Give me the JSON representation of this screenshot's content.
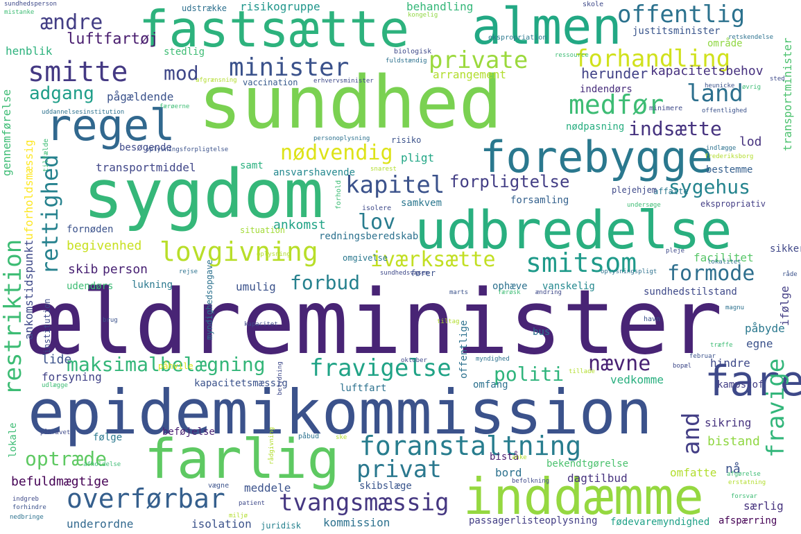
{
  "palette": [
    "#440154",
    "#482878",
    "#3e4989",
    "#31688e",
    "#26828e",
    "#1f9e89",
    "#35b779",
    "#6ece58",
    "#b5de2b",
    "#fde725"
  ],
  "words": [
    {
      "text": "ældreminister",
      "color": "#482475",
      "vertical": false
    },
    {
      "text": "epidemikommission",
      "color": "#3b528b",
      "vertical": false
    },
    {
      "text": "sundhed",
      "color": "#7ad151",
      "vertical": false
    },
    {
      "text": "sygdom",
      "color": "#35b779",
      "vertical": false
    },
    {
      "text": "udbredelse",
      "color": "#29af7f",
      "vertical": false
    },
    {
      "text": "fastsætte",
      "color": "#2db27d",
      "vertical": false
    },
    {
      "text": "almen",
      "color": "#22a884",
      "vertical": false
    },
    {
      "text": "farlig",
      "color": "#5ec962",
      "vertical": false
    },
    {
      "text": "inddæmme",
      "color": "#95d840",
      "vertical": false
    },
    {
      "text": "forebygge",
      "color": "#2a788e",
      "vertical": false
    },
    {
      "text": "regel",
      "color": "#31688e",
      "vertical": false
    },
    {
      "text": "fare",
      "color": "#3e4989",
      "vertical": false
    },
    {
      "text": "foranstaltning",
      "color": "#287d8e",
      "vertical": false
    },
    {
      "text": "smitte",
      "color": "#443983",
      "vertical": false
    },
    {
      "text": "minister",
      "color": "#3b528b",
      "vertical": false
    },
    {
      "text": "lovgivning",
      "color": "#b8de29",
      "vertical": false
    },
    {
      "text": "smitsom",
      "color": "#1f9a8a",
      "vertical": false
    },
    {
      "text": "overførbar",
      "color": "#355f8d",
      "vertical": false
    },
    {
      "text": "tvangsmæssig",
      "color": "#453781",
      "vertical": false
    },
    {
      "text": "forhandling",
      "color": "#d0e11c",
      "vertical": false
    },
    {
      "text": "nødvendig",
      "color": "#dde318",
      "vertical": false
    },
    {
      "text": "offentlig",
      "color": "#2c728e",
      "vertical": false
    },
    {
      "text": "medfør",
      "color": "#3dbc74",
      "vertical": false
    },
    {
      "text": "restriktion",
      "color": "#3dbc74",
      "vertical": true
    },
    {
      "text": "rettighed",
      "color": "#26828e",
      "vertical": true
    },
    {
      "text": "kapitel",
      "color": "#3b528b",
      "vertical": false
    },
    {
      "text": "iværksætte",
      "color": "#c2df23",
      "vertical": false
    },
    {
      "text": "fravigelse",
      "color": "#20a386",
      "vertical": false
    },
    {
      "text": "optræde",
      "color": "#5ec962",
      "vertical": false
    },
    {
      "text": "privat",
      "color": "#2a788e",
      "vertical": false
    },
    {
      "text": "ændre",
      "color": "#433e85",
      "vertical": false
    },
    {
      "text": "luftfartøj",
      "color": "#481c6e",
      "vertical": false
    },
    {
      "text": "adgang",
      "color": "#1f9e89",
      "vertical": false
    },
    {
      "text": "mod",
      "color": "#3f4788",
      "vertical": false
    },
    {
      "text": "private",
      "color": "#9bd93c",
      "vertical": false
    },
    {
      "text": "land",
      "color": "#2d708e",
      "vertical": false
    },
    {
      "text": "indsætte",
      "color": "#46337f",
      "vertical": false
    },
    {
      "text": "forpligtelse",
      "color": "#433e85",
      "vertical": false
    },
    {
      "text": "sygehus",
      "color": "#25848e",
      "vertical": false
    },
    {
      "text": "lov",
      "color": "#287c8e",
      "vertical": false
    },
    {
      "text": "forbud",
      "color": "#26818e",
      "vertical": false
    },
    {
      "text": "formode",
      "color": "#2e6f8e",
      "vertical": false
    },
    {
      "text": "nævne",
      "color": "#482173",
      "vertical": false
    },
    {
      "text": "politi",
      "color": "#2fb47c",
      "vertical": false
    },
    {
      "text": "maksimalbelægning",
      "color": "#34b679",
      "vertical": false
    },
    {
      "text": "fravige",
      "color": "#32b67a",
      "vertical": true
    },
    {
      "text": "and",
      "color": "#433e85",
      "vertical": true
    },
    {
      "text": "herunder",
      "color": "#414287",
      "vertical": false
    },
    {
      "text": "pågældende",
      "color": "#3b528b",
      "vertical": false
    },
    {
      "text": "kapacitetsbehov",
      "color": "#46307e",
      "vertical": false
    },
    {
      "text": "justitsminister",
      "color": "#39558c",
      "vertical": false
    },
    {
      "text": "område",
      "color": "#90d743",
      "vertical": false
    },
    {
      "text": "arrangement",
      "color": "#b2dd2d",
      "vertical": false
    },
    {
      "text": "vaccination",
      "color": "#375a8c",
      "vertical": false
    },
    {
      "text": "indendørs",
      "color": "#472d7b",
      "vertical": false
    },
    {
      "text": "udstrække",
      "color": "#2d708e",
      "vertical": false
    },
    {
      "text": "risikogruppe",
      "color": "#1f968b",
      "vertical": false
    },
    {
      "text": "behandling",
      "color": "#35b779",
      "vertical": false
    },
    {
      "text": "henblik",
      "color": "#2db27d",
      "vertical": false
    },
    {
      "text": "stedlig",
      "color": "#3dbc74",
      "vertical": false
    },
    {
      "text": "transportmiddel",
      "color": "#404688",
      "vertical": false
    },
    {
      "text": "besøgende",
      "color": "#3e4989",
      "vertical": false
    },
    {
      "text": "nødpasning",
      "color": "#28ae80",
      "vertical": false
    },
    {
      "text": "risiko",
      "color": "#3b528b",
      "vertical": false
    },
    {
      "text": "pligt",
      "color": "#21a685",
      "vertical": false
    },
    {
      "text": "samt",
      "color": "#2ab07f",
      "vertical": false
    },
    {
      "text": "ansvarshavende",
      "color": "#23888e",
      "vertical": false
    },
    {
      "text": "lod",
      "color": "#46327e",
      "vertical": false
    },
    {
      "text": "bestemme",
      "color": "#355f8d",
      "vertical": false
    },
    {
      "text": "samkvem",
      "color": "#2a768e",
      "vertical": false
    },
    {
      "text": "forsamling",
      "color": "#34618d",
      "vertical": false
    },
    {
      "text": "affatte",
      "color": "#2a788e",
      "vertical": false
    },
    {
      "text": "ekspropriativ",
      "color": "#433e85",
      "vertical": false
    },
    {
      "text": "plejehjem",
      "color": "#3e4989",
      "vertical": false
    },
    {
      "text": "ankomst",
      "color": "#20a386",
      "vertical": false
    },
    {
      "text": "situation",
      "color": "#a2da37",
      "vertical": false
    },
    {
      "text": "redningsberedskab",
      "color": "#2c718e",
      "vertical": false
    },
    {
      "text": "begivenhed",
      "color": "#c8e020",
      "vertical": false
    },
    {
      "text": "skib",
      "color": "#482173",
      "vertical": false
    },
    {
      "text": "person",
      "color": "#482173",
      "vertical": false
    },
    {
      "text": "omgivelse",
      "color": "#2a788e",
      "vertical": false
    },
    {
      "text": "fører",
      "color": "#3b528b",
      "vertical": false
    },
    {
      "text": "facilitet",
      "color": "#56c667",
      "vertical": false
    },
    {
      "text": "sikker",
      "color": "#3f4788",
      "vertical": false
    },
    {
      "text": "ophæve",
      "color": "#2c718e",
      "vertical": false
    },
    {
      "text": "vanskelig",
      "color": "#23888e",
      "vertical": false
    },
    {
      "text": "umulig",
      "color": "#3b528b",
      "vertical": false
    },
    {
      "text": "lukning",
      "color": "#2a788e",
      "vertical": false
    },
    {
      "text": "udendørs",
      "color": "#3dbc74",
      "vertical": false
    },
    {
      "text": "sundhedstilstand",
      "color": "#3e4989",
      "vertical": false
    },
    {
      "text": "ifølge",
      "color": "#433e85",
      "vertical": true
    },
    {
      "text": "påbyde",
      "color": "#2a788e",
      "vertical": false
    },
    {
      "text": "egne",
      "color": "#3b528b",
      "vertical": false
    },
    {
      "text": "bus",
      "color": "#2c718e",
      "vertical": false
    },
    {
      "text": "lide",
      "color": "#3b528b",
      "vertical": false
    },
    {
      "text": "hindre",
      "color": "#3e4989",
      "vertical": false
    },
    {
      "text": "forsyning",
      "color": "#414287",
      "vertical": false
    },
    {
      "text": "kapacitetsmæssig",
      "color": "#3b528b",
      "vertical": false
    },
    {
      "text": "omfang",
      "color": "#2c718e",
      "vertical": false
    },
    {
      "text": "luftfart",
      "color": "#2c718e",
      "vertical": false
    },
    {
      "text": "vedkomme",
      "color": "#29af7f",
      "vertical": false
    },
    {
      "text": "kampstof",
      "color": "#433e85",
      "vertical": false
    },
    {
      "text": "sikring",
      "color": "#46327e",
      "vertical": false
    },
    {
      "text": "følge",
      "color": "#2a788e",
      "vertical": false
    },
    {
      "text": "beføjelse",
      "color": "#482173",
      "vertical": false
    },
    {
      "text": "bistand",
      "color": "#90d743",
      "vertical": false
    },
    {
      "text": "bistå",
      "color": "#481c6e",
      "vertical": false
    },
    {
      "text": "bekendtgørelse",
      "color": "#4ac16d",
      "vertical": false
    },
    {
      "text": "omfatte",
      "color": "#b2dd2d",
      "vertical": false
    },
    {
      "text": "nå",
      "color": "#3b528b",
      "vertical": false
    },
    {
      "text": "bord",
      "color": "#2c718e",
      "vertical": false
    },
    {
      "text": "befuldmægtige",
      "color": "#440154",
      "vertical": false
    },
    {
      "text": "meddele",
      "color": "#3b528b",
      "vertical": false
    },
    {
      "text": "skibslæge",
      "color": "#39558c",
      "vertical": false
    },
    {
      "text": "dagtilbud",
      "color": "#46327e",
      "vertical": false
    },
    {
      "text": "underordne",
      "color": "#31688e",
      "vertical": false
    },
    {
      "text": "isolation",
      "color": "#3b528b",
      "vertical": false
    },
    {
      "text": "juridisk",
      "color": "#26818e",
      "vertical": false
    },
    {
      "text": "kommission",
      "color": "#2c718e",
      "vertical": false
    },
    {
      "text": "passagerlisteoplysning",
      "color": "#433e85",
      "vertical": false
    },
    {
      "text": "fødevaremyndighed",
      "color": "#1fa187",
      "vertical": false
    },
    {
      "text": "afspærring",
      "color": "#440154",
      "vertical": false
    },
    {
      "text": "særlig",
      "color": "#46327e",
      "vertical": false
    },
    {
      "text": "gennemførelse",
      "color": "#3dbc74",
      "vertical": true
    },
    {
      "text": "uforholdsmæssig",
      "color": "#fde725",
      "vertical": true
    },
    {
      "text": "ankomstidspunkt",
      "color": "#3e4989",
      "vertical": true
    },
    {
      "text": "transportminister",
      "color": "#4ac16d",
      "vertical": true
    },
    {
      "text": "myndighedsopgave",
      "color": "#2c718e",
      "vertical": true
    },
    {
      "text": "offentlige",
      "color": "#2c718e",
      "vertical": true
    },
    {
      "text": "institution",
      "color": "#3e4989",
      "vertical": true
    },
    {
      "text": "fornøden",
      "color": "#3b528b",
      "vertical": false
    },
    {
      "text": "lokale",
      "color": "#3dbc74",
      "vertical": true
    },
    {
      "text": "sundhedsperson",
      "color": "#3e4989",
      "vertical": false
    },
    {
      "text": "mistanke",
      "color": "#3dbc74",
      "vertical": false
    },
    {
      "text": "ekspropriation",
      "color": "#2a788e",
      "vertical": false
    },
    {
      "text": "biologisk",
      "color": "#3e4989",
      "vertical": false
    },
    {
      "text": "kongelig",
      "color": "#90d743",
      "vertical": false
    },
    {
      "text": "skole",
      "color": "#3e4989",
      "vertical": false
    },
    {
      "text": "retskendelse",
      "color": "#2c718e",
      "vertical": false
    },
    {
      "text": "ressource",
      "color": "#3dbc74",
      "vertical": false
    },
    {
      "text": "fuldstændig",
      "color": "#2c718e",
      "vertical": false
    },
    {
      "text": "afgrænsning",
      "color": "#b2dd2d",
      "vertical": false
    },
    {
      "text": "erhvervsminister",
      "color": "#3e4989",
      "vertical": false
    },
    {
      "text": "heunicke",
      "color": "#3b528b",
      "vertical": false
    },
    {
      "text": "øvrig",
      "color": "#3dbc74",
      "vertical": false
    },
    {
      "text": "sted",
      "color": "#3e4989",
      "vertical": false
    },
    {
      "text": "uddannelsesinstitution",
      "color": "#2c718e",
      "vertical": false
    },
    {
      "text": "færøerne",
      "color": "#3dbc74",
      "vertical": false
    },
    {
      "text": "offentlighed",
      "color": "#3b528b",
      "vertical": false
    },
    {
      "text": "minimere",
      "color": "#3e4989",
      "vertical": false
    },
    {
      "text": "frederiksborg",
      "color": "#b2dd2d",
      "vertical": false
    },
    {
      "text": "indlægge",
      "color": "#2c718e",
      "vertical": false
    },
    {
      "text": "oplysningsforpligtelse",
      "color": "#3b528b",
      "vertical": false
    },
    {
      "text": "personoplysning",
      "color": "#2c718e",
      "vertical": false
    },
    {
      "text": "snarest",
      "color": "#b2dd2d",
      "vertical": false
    },
    {
      "text": "isolere",
      "color": "#3e4989",
      "vertical": false
    },
    {
      "text": "undersøge",
      "color": "#3dbc74",
      "vertical": false
    },
    {
      "text": "oplysning",
      "color": "#b2dd2d",
      "vertical": false
    },
    {
      "text": "pleje",
      "color": "#3e4989",
      "vertical": false
    },
    {
      "text": "lokalitet",
      "color": "#2c718e",
      "vertical": false
    },
    {
      "text": "råde",
      "color": "#3b528b",
      "vertical": false
    },
    {
      "text": "rejse",
      "color": "#2c718e",
      "vertical": false
    },
    {
      "text": "sundhedsvæsen",
      "color": "#3e4989",
      "vertical": false
    },
    {
      "text": "oplysningspligt",
      "color": "#2c718e",
      "vertical": false
    },
    {
      "text": "marts",
      "color": "#3b528b",
      "vertical": false
    },
    {
      "text": "færøsk",
      "color": "#3dbc74",
      "vertical": false
    },
    {
      "text": "ændring",
      "color": "#3e4989",
      "vertical": false
    },
    {
      "text": "magnu",
      "color": "#2c718e",
      "vertical": false
    },
    {
      "text": "brug",
      "color": "#3b528b",
      "vertical": false
    },
    {
      "text": "kapacitet",
      "color": "#3e4989",
      "vertical": false
    },
    {
      "text": "tiltag",
      "color": "#b2dd2d",
      "vertical": false
    },
    {
      "text": "havn",
      "color": "#3b528b",
      "vertical": false
    },
    {
      "text": "træffe",
      "color": "#3dbc74",
      "vertical": false
    },
    {
      "text": "oktober",
      "color": "#3e4989",
      "vertical": false
    },
    {
      "text": "myndighed",
      "color": "#2c718e",
      "vertical": false
    },
    {
      "text": "februar",
      "color": "#3b528b",
      "vertical": false
    },
    {
      "text": "tillade",
      "color": "#b2dd2d",
      "vertical": false
    },
    {
      "text": "bopæl",
      "color": "#3e4989",
      "vertical": false
    },
    {
      "text": "udlægge",
      "color": "#3dbc74",
      "vertical": false
    },
    {
      "text": "påhvile",
      "color": "#dde318",
      "vertical": false
    },
    {
      "text": "påkrævet",
      "color": "#3e4989",
      "vertical": false
    },
    {
      "text": "påbud",
      "color": "#2c718e",
      "vertical": false
    },
    {
      "text": "ske",
      "color": "#b2dd2d",
      "vertical": false
    },
    {
      "text": "afholdelse",
      "color": "#3dbc74",
      "vertical": false
    },
    {
      "text": "vægne",
      "color": "#3b528b",
      "vertical": false
    },
    {
      "text": "befolkning",
      "color": "#3e4989",
      "vertical": false
    },
    {
      "text": "afgørelse",
      "color": "#3dbc74",
      "vertical": false
    },
    {
      "text": "erstatning",
      "color": "#b2dd2d",
      "vertical": false
    },
    {
      "text": "forsvar",
      "color": "#3dbc74",
      "vertical": false
    },
    {
      "text": "indgreb",
      "color": "#3e4989",
      "vertical": false
    },
    {
      "text": "forhindre",
      "color": "#3b528b",
      "vertical": false
    },
    {
      "text": "nedbringe",
      "color": "#2c718e",
      "vertical": false
    },
    {
      "text": "miljø",
      "color": "#b2dd2d",
      "vertical": false
    },
    {
      "text": "patient",
      "color": "#3e4989",
      "vertical": false
    },
    {
      "text": "rådgivning",
      "color": "#b2dd2d",
      "vertical": true
    },
    {
      "text": "betydning",
      "color": "#3e4989",
      "vertical": true
    },
    {
      "text": "forhold",
      "color": "#3dbc74",
      "vertical": true
    },
    {
      "text": "tilfælde",
      "color": "#3dbc74",
      "vertical": true
    },
    {
      "text": "anke",
      "color": "#b2dd2d",
      "vertical": false
    }
  ]
}
